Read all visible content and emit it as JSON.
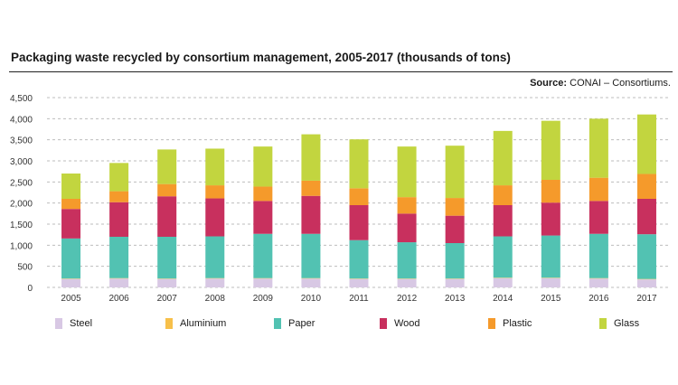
{
  "header": {
    "title": "Packaging waste recycled by consortium management, 2005-2017 (thousands of tons)",
    "source_label": "Source:",
    "source_text": "CONAI – Consortiums."
  },
  "colors": {
    "Steel": "#d8c8e4",
    "Aluminium": "#f7c04a",
    "Paper": "#52c2b2",
    "Wood": "#c8305e",
    "Plastic": "#f59a2b",
    "Glass": "#c2d53f"
  },
  "chart_data": {
    "type": "bar",
    "stacked": true,
    "categories": [
      "2005",
      "2006",
      "2007",
      "2008",
      "2009",
      "2010",
      "2011",
      "2012",
      "2013",
      "2014",
      "2015",
      "2016",
      "2017"
    ],
    "ylim": [
      0,
      4500
    ],
    "yticks": [
      0,
      500,
      1000,
      1500,
      2000,
      2500,
      3000,
      3500,
      4000,
      4500
    ],
    "ytick_labels": [
      "0",
      "500",
      "1,000",
      "1,500",
      "2,000",
      "2,500",
      "3,000",
      "3,500",
      "4,000",
      "4,500"
    ],
    "grid": true,
    "legend_position": "bottom",
    "series": [
      {
        "name": "Steel",
        "values": [
          200,
          210,
          200,
          210,
          210,
          210,
          200,
          200,
          200,
          220,
          220,
          210,
          190
        ]
      },
      {
        "name": "Aluminium",
        "values": [
          10,
          10,
          10,
          10,
          10,
          10,
          10,
          10,
          10,
          10,
          10,
          10,
          10
        ]
      },
      {
        "name": "Paper",
        "values": [
          950,
          980,
          990,
          990,
          1050,
          1050,
          910,
          860,
          840,
          980,
          1000,
          1050,
          1060
        ]
      },
      {
        "name": "Wood",
        "values": [
          700,
          820,
          960,
          900,
          780,
          900,
          830,
          680,
          650,
          740,
          780,
          780,
          840
        ]
      },
      {
        "name": "Plastic",
        "values": [
          240,
          260,
          290,
          310,
          340,
          360,
          400,
          390,
          420,
          470,
          540,
          550,
          590
        ]
      },
      {
        "name": "Glass",
        "values": [
          600,
          670,
          820,
          870,
          950,
          1100,
          1160,
          1200,
          1240,
          1290,
          1400,
          1400,
          1410
        ]
      }
    ]
  }
}
